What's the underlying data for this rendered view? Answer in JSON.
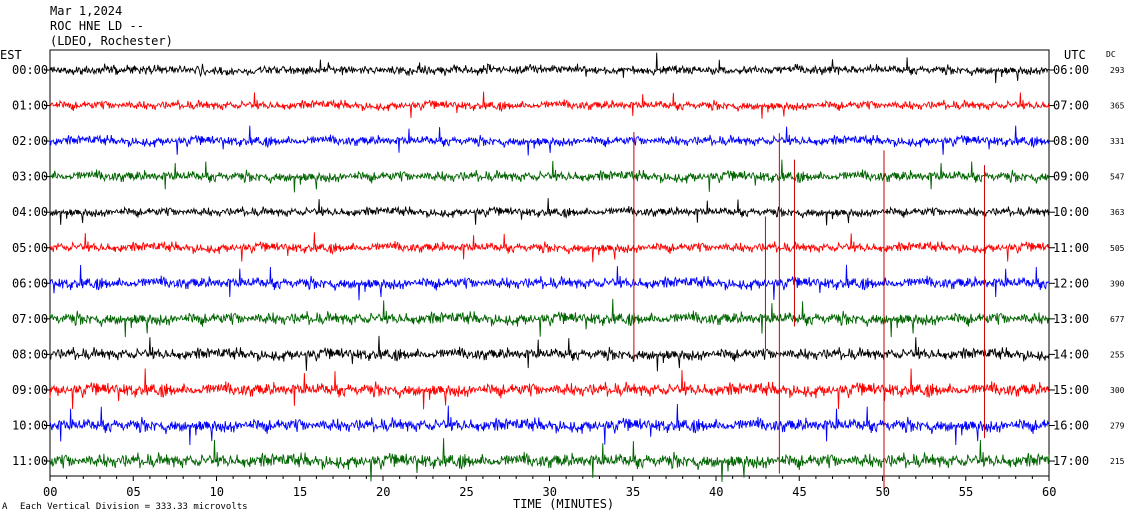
{
  "header": {
    "date": "Mar 1,2024",
    "station": "ROC HNE LD --",
    "location": "(LDEO, Rochester)"
  },
  "chart_data": {
    "type": "line",
    "left_timezone": "EST",
    "right_timezone": "UTC",
    "dc_label": "DC",
    "xlabel": "TIME (MINUTES)",
    "xlim": [
      0,
      60
    ],
    "x_ticks": [
      "00",
      "05",
      "10",
      "15",
      "20",
      "25",
      "30",
      "35",
      "40",
      "45",
      "50",
      "55",
      "60"
    ],
    "footer_note": "Each Vertical Division = 333.33 microvolts",
    "trace_colors": [
      "#000000",
      "#ff0000",
      "#0000ff",
      "#006400"
    ],
    "rows": [
      {
        "est": "00:00",
        "utc": "06:00",
        "dc": "293",
        "color": "#000000",
        "amp": 1.0
      },
      {
        "est": "01:00",
        "utc": "07:00",
        "dc": "365",
        "color": "#ff0000",
        "amp": 1.0
      },
      {
        "est": "02:00",
        "utc": "08:00",
        "dc": "331",
        "color": "#0000ff",
        "amp": 1.1
      },
      {
        "est": "03:00",
        "utc": "09:00",
        "dc": "547",
        "color": "#006400",
        "amp": 1.2
      },
      {
        "est": "04:00",
        "utc": "10:00",
        "dc": "363",
        "color": "#000000",
        "amp": 1.0
      },
      {
        "est": "05:00",
        "utc": "11:00",
        "dc": "505",
        "color": "#ff0000",
        "amp": 1.1
      },
      {
        "est": "06:00",
        "utc": "12:00",
        "dc": "390",
        "color": "#0000ff",
        "amp": 1.3
      },
      {
        "est": "07:00",
        "utc": "13:00",
        "dc": "677",
        "color": "#006400",
        "amp": 1.4
      },
      {
        "est": "08:00",
        "utc": "14:00",
        "dc": "255",
        "color": "#000000",
        "amp": 1.3
      },
      {
        "est": "09:00",
        "utc": "15:00",
        "dc": "300",
        "color": "#ff0000",
        "amp": 1.5
      },
      {
        "est": "10:00",
        "utc": "16:00",
        "dc": "279",
        "color": "#0000ff",
        "amp": 1.5
      },
      {
        "est": "11:00",
        "utc": "17:00",
        "dc": "215",
        "color": "#006400",
        "amp": 1.6
      }
    ]
  }
}
